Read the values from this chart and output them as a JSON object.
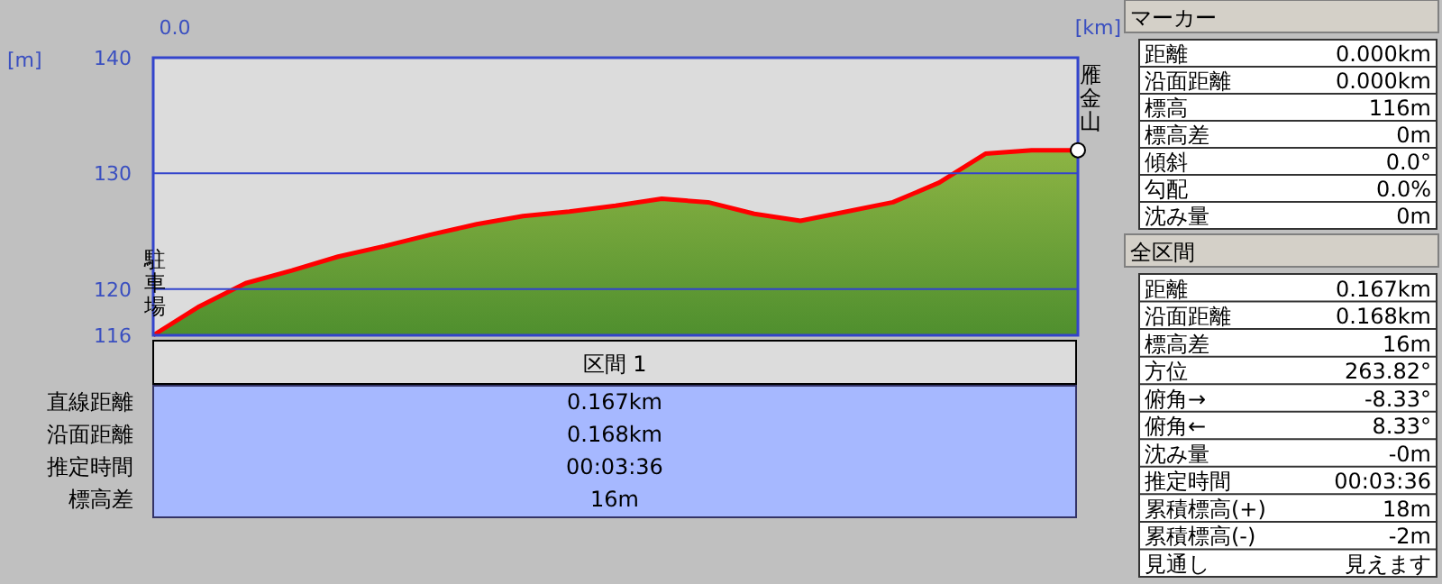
{
  "chart_data": [
    {
      "type": "area",
      "xlabel": "[km]",
      "ylabel": "[m]",
      "categories": [
        null,
        null,
        null,
        null,
        null,
        null,
        null,
        null,
        null,
        null,
        null,
        null,
        null,
        null,
        null,
        null,
        null,
        null,
        null,
        null,
        null
      ],
      "series": [
        {
          "color": "#ff0000",
          "values": [
            116,
            118.5,
            120.5,
            121.6,
            122.8,
            123.7,
            124.7,
            125.6,
            126.3,
            126.7,
            127.2,
            127.8,
            127.5,
            126.5,
            125.9,
            126.7,
            127.5,
            129.2,
            131.7,
            132,
            132
          ]
        }
      ],
      "ylim": [
        116,
        140
      ],
      "yticks": [
        116,
        120,
        130,
        140
      ],
      "grid": "y",
      "annotations": [
        "0.0",
        "駐車場",
        "雁金山"
      ]
    },
    {
      "type": "other",
      "title": "区間 1",
      "annotations": [
        "直線距離",
        "0.167km",
        "沿面距離",
        "0.168km",
        "推定時間",
        "00:03:36",
        "標高差",
        "16m"
      ]
    },
    {
      "type": "other",
      "title": "マーカー",
      "annotations": [
        "距離",
        "0.000km",
        "沿面距離",
        "0.000km",
        "標高",
        "116m",
        "標高差",
        "0m",
        "傾斜",
        "0.0°",
        "勾配",
        "0.0%",
        "沈み量",
        "0m"
      ]
    },
    {
      "type": "other",
      "title": "全区間",
      "annotations": [
        "距離",
        "0.167km",
        "沿面距離",
        "0.168km",
        "標高差",
        "16m",
        "方位",
        "263.82°",
        "俯角→",
        "-8.33°",
        "俯角←",
        "8.33°",
        "沈み量",
        "-0m",
        "推定時間",
        "00:03:36",
        "累積標高(+)",
        "18m",
        "累積標高(-)",
        "-2m",
        "見通し",
        "見えます"
      ]
    }
  ]
}
